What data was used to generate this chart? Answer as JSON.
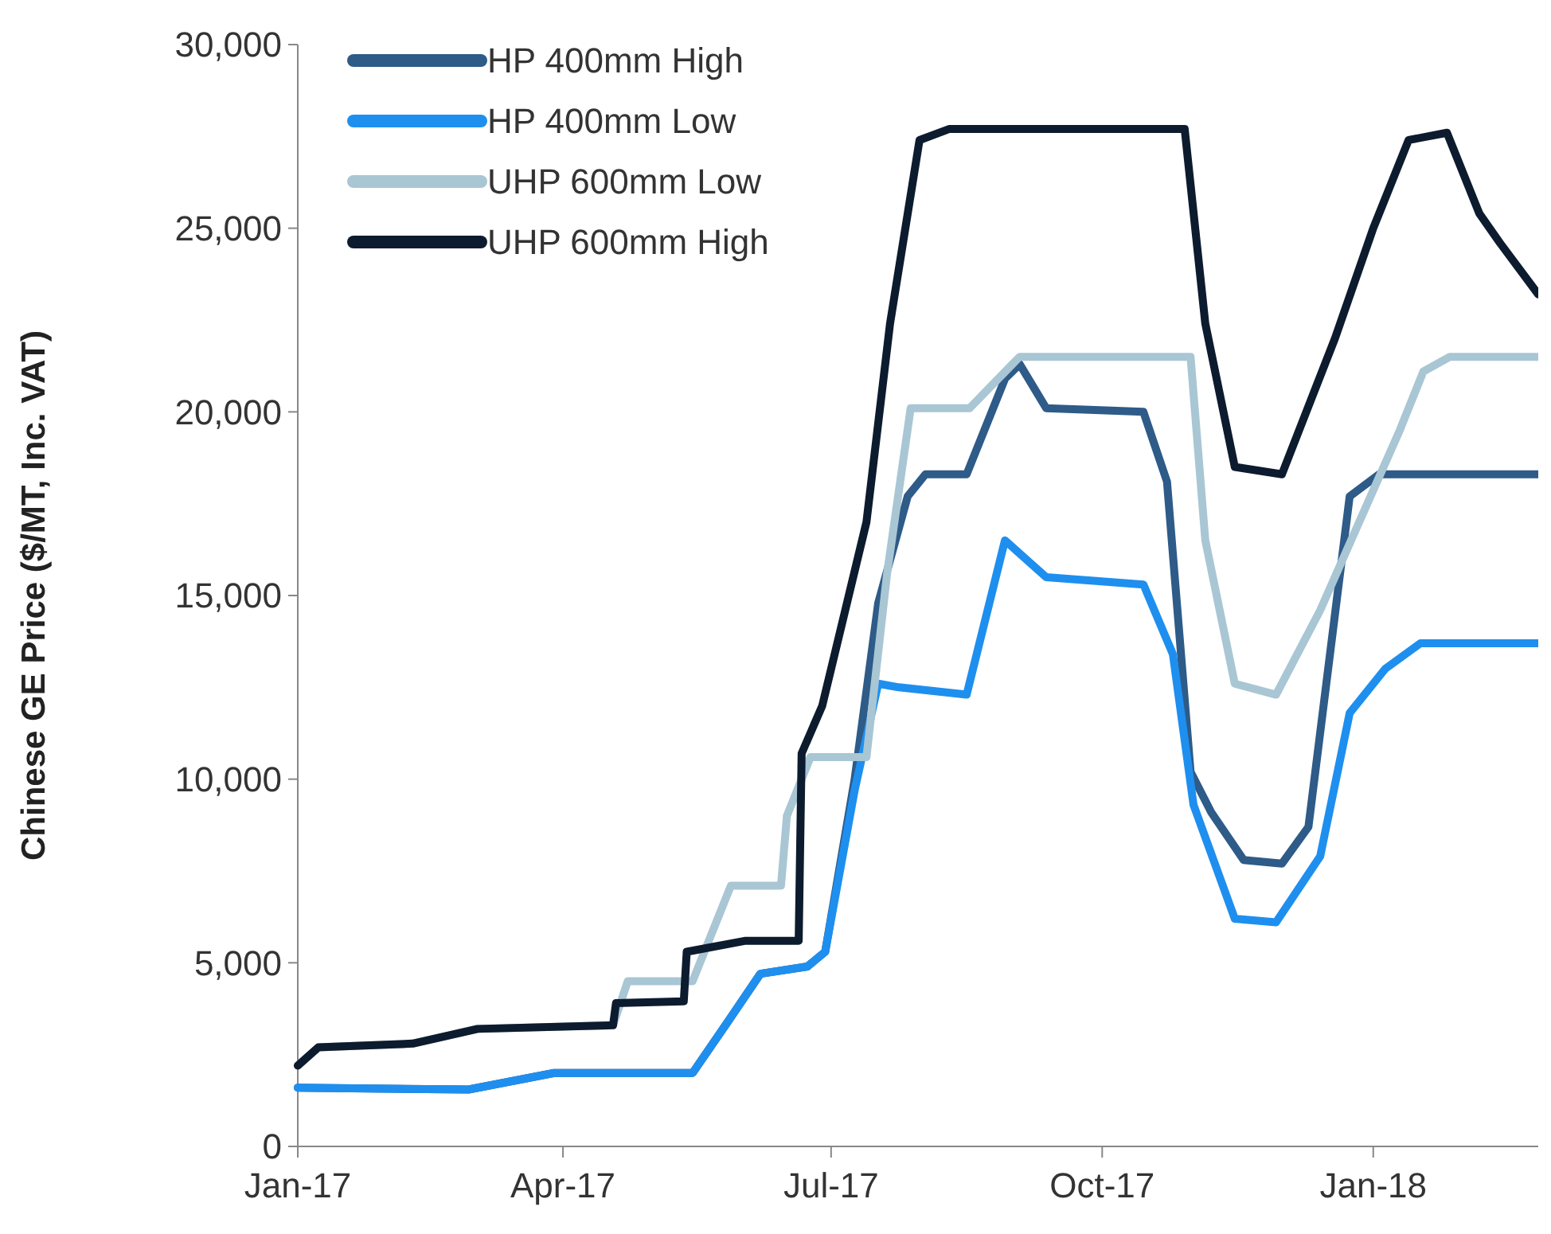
{
  "chart_data": {
    "type": "line",
    "ylabel": "Chinese GE Price ($/MT, Inc. VAT)",
    "xlim": [
      "2017-01-01",
      "2018-02-26"
    ],
    "ylim": [
      0,
      30000
    ],
    "xticks": [
      {
        "value": "2017-01-01",
        "label": "Jan-17"
      },
      {
        "value": "2017-04-01",
        "label": "Apr-17"
      },
      {
        "value": "2017-07-01",
        "label": "Jul-17"
      },
      {
        "value": "2017-10-01",
        "label": "Oct-17"
      },
      {
        "value": "2018-01-01",
        "label": "Jan-18"
      }
    ],
    "yticks": [
      {
        "value": 0,
        "label": "0"
      },
      {
        "value": 5000,
        "label": "5,000"
      },
      {
        "value": 10000,
        "label": "10,000"
      },
      {
        "value": 15000,
        "label": "15,000"
      },
      {
        "value": 20000,
        "label": "20,000"
      },
      {
        "value": 25000,
        "label": "25,000"
      },
      {
        "value": 30000,
        "label": "30,000"
      }
    ],
    "grid": false,
    "legend": "top left",
    "marker": "none",
    "line_style": "solid",
    "series": [
      {
        "name": "HP 400mm High",
        "color": "#2e5b88",
        "x": [
          "2017-01-01",
          "2017-02-28",
          "2017-03-29",
          "2017-05-15",
          "2017-05-27",
          "2017-06-07",
          "2017-06-23",
          "2017-06-29",
          "2017-07-09",
          "2017-07-17",
          "2017-07-27",
          "2017-08-02",
          "2017-08-16",
          "2017-08-29",
          "2017-09-03",
          "2017-09-12",
          "2017-10-15",
          "2017-10-23",
          "2017-10-31",
          "2017-11-07",
          "2017-11-18",
          "2017-12-01",
          "2017-12-10",
          "2017-12-24",
          "2018-01-03",
          "2018-02-26"
        ],
        "values": [
          1600,
          1550,
          2000,
          2000,
          3400,
          4700,
          4900,
          5300,
          10000,
          14800,
          17700,
          18300,
          18300,
          20900,
          21300,
          20100,
          20000,
          18100,
          10200,
          9100,
          7800,
          7700,
          8700,
          17700,
          18300,
          18300
        ]
      },
      {
        "name": "HP 400mm Low",
        "color": "#1e8fef",
        "x": [
          "2017-01-01",
          "2017-02-28",
          "2017-03-29",
          "2017-05-15",
          "2017-05-27",
          "2017-06-07",
          "2017-06-23",
          "2017-06-29",
          "2017-07-09",
          "2017-07-17",
          "2017-07-24",
          "2017-08-16",
          "2017-08-29",
          "2017-09-12",
          "2017-10-15",
          "2017-10-25",
          "2017-11-01",
          "2017-11-15",
          "2017-11-29",
          "2017-12-14",
          "2017-12-24",
          "2018-01-05",
          "2018-01-17",
          "2018-02-26"
        ],
        "values": [
          1600,
          1550,
          2000,
          2000,
          3400,
          4700,
          4900,
          5300,
          9700,
          12600,
          12500,
          12300,
          16500,
          15500,
          15300,
          13400,
          9300,
          6200,
          6100,
          7900,
          11800,
          13000,
          13700,
          13700
        ]
      },
      {
        "name": "UHP 600mm Low",
        "color": "#a9c6d4",
        "x": [
          "2017-01-01",
          "2017-01-08",
          "2017-02-09",
          "2017-03-03",
          "2017-04-18",
          "2017-04-23",
          "2017-05-15",
          "2017-05-28",
          "2017-06-14",
          "2017-06-16",
          "2017-06-24",
          "2017-07-13",
          "2017-07-20",
          "2017-07-28",
          "2017-08-17",
          "2017-09-03",
          "2017-10-31",
          "2017-11-05",
          "2017-11-15",
          "2017-11-29",
          "2017-12-14",
          "2018-01-10",
          "2018-01-18",
          "2018-01-27",
          "2018-02-26"
        ],
        "values": [
          2200,
          2700,
          2800,
          3200,
          3300,
          4500,
          4500,
          7100,
          7100,
          9000,
          10600,
          10600,
          15600,
          20100,
          20100,
          21500,
          21500,
          16500,
          12600,
          12300,
          14600,
          19500,
          21100,
          21500,
          21500
        ]
      },
      {
        "name": "UHP 600mm High",
        "color": "#0d1b2e",
        "x": [
          "2017-01-01",
          "2017-01-08",
          "2017-02-09",
          "2017-03-03",
          "2017-04-18",
          "2017-04-19",
          "2017-05-12",
          "2017-05-13",
          "2017-06-02",
          "2017-06-20",
          "2017-06-21",
          "2017-06-28",
          "2017-07-13",
          "2017-07-21",
          "2017-07-31",
          "2017-08-10",
          "2017-10-29",
          "2017-11-05",
          "2017-11-15",
          "2017-12-01",
          "2017-12-19",
          "2018-01-01",
          "2018-01-13",
          "2018-01-26",
          "2018-02-06",
          "2018-02-13",
          "2018-02-26"
        ],
        "values": [
          2200,
          2700,
          2800,
          3200,
          3300,
          3900,
          3950,
          5300,
          5600,
          5600,
          10700,
          12000,
          17000,
          22400,
          27400,
          27700,
          27700,
          22400,
          18500,
          18300,
          22000,
          25000,
          27400,
          27600,
          25400,
          24600,
          23200
        ]
      }
    ]
  }
}
